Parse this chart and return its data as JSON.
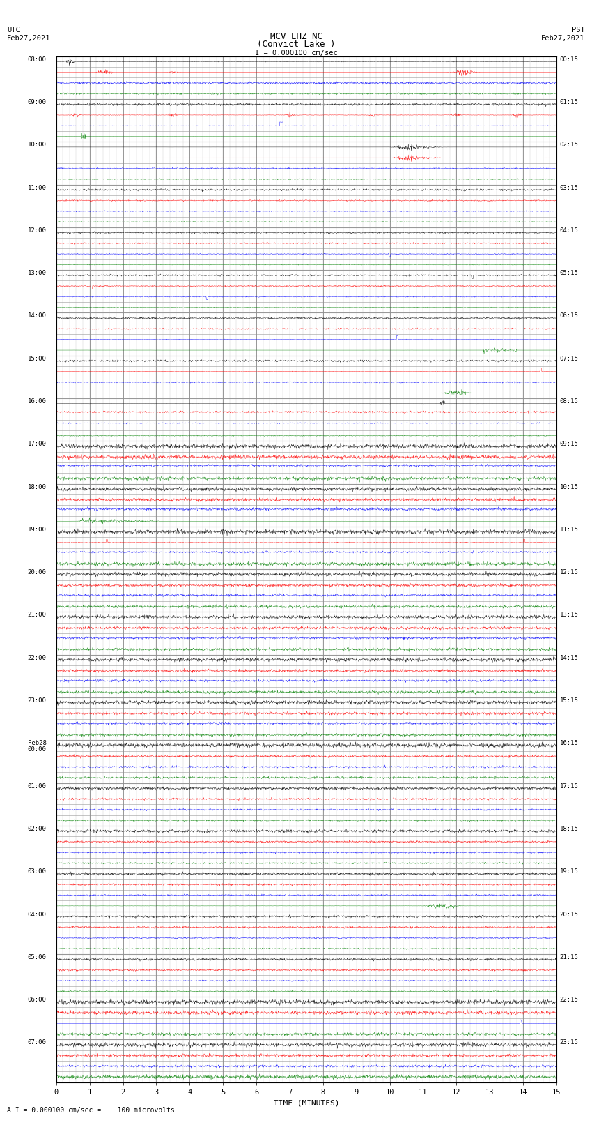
{
  "title_line1": "MCV EHZ NC",
  "title_line2": "(Convict Lake )",
  "scale_text": "I = 0.000100 cm/sec",
  "bottom_note": "A I = 0.000100 cm/sec =    100 microvolts",
  "xlabel": "TIME (MINUTES)",
  "x_ticks": [
    0,
    1,
    2,
    3,
    4,
    5,
    6,
    7,
    8,
    9,
    10,
    11,
    12,
    13,
    14,
    15
  ],
  "left_times": [
    "08:00",
    "09:00",
    "10:00",
    "11:00",
    "12:00",
    "13:00",
    "14:00",
    "15:00",
    "16:00",
    "17:00",
    "18:00",
    "19:00",
    "20:00",
    "21:00",
    "22:00",
    "23:00",
    "Feb28\n00:00",
    "01:00",
    "02:00",
    "03:00",
    "04:00",
    "05:00",
    "06:00",
    "07:00"
  ],
  "right_times": [
    "00:15",
    "01:15",
    "02:15",
    "03:15",
    "04:15",
    "05:15",
    "06:15",
    "07:15",
    "08:15",
    "09:15",
    "10:15",
    "11:15",
    "12:15",
    "13:15",
    "14:15",
    "15:15",
    "16:15",
    "17:15",
    "18:15",
    "19:15",
    "20:15",
    "21:15",
    "22:15",
    "23:15"
  ],
  "bg_color": "#ffffff",
  "grid_color": "#aaaaaa",
  "fig_width": 8.5,
  "fig_height": 16.13,
  "dpi": 100
}
